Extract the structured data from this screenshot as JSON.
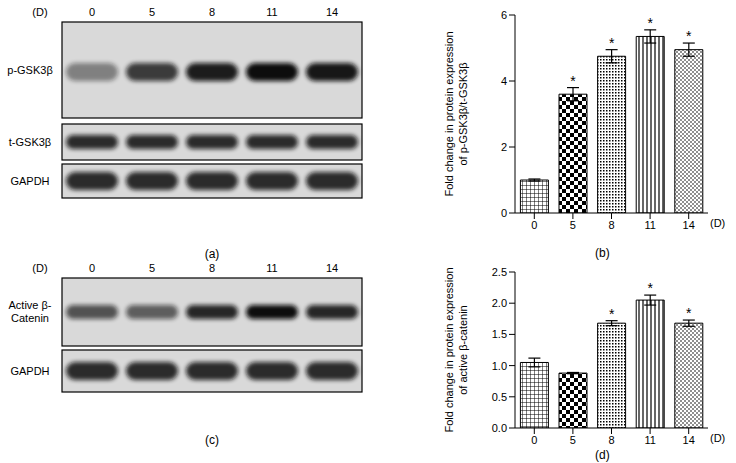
{
  "chart_data": [
    {
      "type": "bar",
      "panel_label": "(b)",
      "y_label": "Fold change in protein expression of p-GSK3β/t-GSK3β",
      "x_label": "(D)",
      "categories": [
        "0",
        "5",
        "8",
        "11",
        "14"
      ],
      "values": [
        1.0,
        3.6,
        4.75,
        5.35,
        4.95
      ],
      "errors": [
        0.03,
        0.2,
        0.2,
        0.2,
        0.2
      ],
      "significance": [
        null,
        "*",
        "*",
        "*",
        "*"
      ],
      "color": "#000000",
      "ylim": [
        0,
        6
      ],
      "yticks": [
        0,
        2,
        4,
        6
      ],
      "grid": false
    },
    {
      "type": "bar",
      "panel_label": "(d)",
      "y_label": "Fold change in protein expression of active β-catenin",
      "x_label": "(D)",
      "categories": [
        "0",
        "5",
        "8",
        "11",
        "14"
      ],
      "values": [
        1.05,
        0.88,
        1.68,
        2.05,
        1.68
      ],
      "errors": [
        0.07,
        0.01,
        0.04,
        0.08,
        0.05
      ],
      "significance": [
        null,
        null,
        "*",
        "*",
        "*"
      ],
      "color": "#000000",
      "ylim": [
        0,
        2.5
      ],
      "yticks": [
        {
          "value": 0,
          "label": "0.0"
        },
        {
          "value": 0.5,
          "label": "0.5"
        },
        {
          "value": 1.0,
          "label": "1.0"
        },
        {
          "value": 1.5,
          "label": "1.5"
        },
        {
          "value": 2.0,
          "label": "2.0"
        },
        {
          "value": 2.5,
          "label": "2.5"
        }
      ],
      "grid": false
    }
  ],
  "blots": [
    {
      "panel_label": "(a)",
      "time_label": "(D)",
      "lanes": [
        "0",
        "5",
        "8",
        "11",
        "14"
      ],
      "rows": [
        "p-GSK3β",
        "t-GSK3β",
        "GAPDH"
      ]
    },
    {
      "panel_label": "(c)",
      "time_label": "(D)",
      "lanes": [
        "0",
        "5",
        "8",
        "11",
        "14"
      ],
      "rows": [
        "Active β-Catenin",
        "GAPDH"
      ]
    }
  ]
}
